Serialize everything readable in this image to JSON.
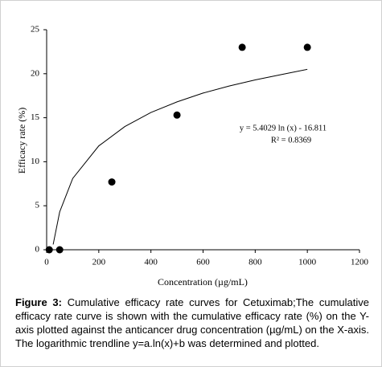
{
  "chart_data": {
    "type": "scatter",
    "x": [
      10,
      50,
      250,
      500,
      750,
      1000
    ],
    "values": [
      0,
      0,
      7.7,
      15.3,
      23,
      23
    ],
    "color": "#000000",
    "xlim": [
      0,
      1200
    ],
    "xticks": [
      0,
      200,
      400,
      600,
      800,
      1000,
      1200
    ],
    "ylim": [
      0,
      25
    ],
    "yticks": [
      0,
      5,
      10,
      15,
      20,
      25
    ],
    "xlabel": "Concentration (µg/mL)",
    "ylabel": "Efficacy rate (%)",
    "grid": false,
    "trendline": {
      "x": [
        25,
        50,
        100,
        200,
        300,
        400,
        500,
        600,
        700,
        800,
        900,
        1000
      ],
      "values": [
        0.6,
        4.3,
        8.1,
        11.8,
        14.0,
        15.6,
        16.8,
        17.8,
        18.6,
        19.3,
        19.9,
        20.5
      ]
    },
    "annotations": [
      "y = 5.4029 ln (x) - 16.811",
      "R² = 0.8369"
    ]
  },
  "caption": {
    "label": "Figure 3:",
    "text": "Cumulative efficacy rate curves for Cetuximab;The cumulative efficacy rate curve is shown with the cumulative efficacy rate (%) on the Y-axis plotted against the anticancer drug concentration (µg/mL) on the X-axis. The logarithmic trendline y=a.ln(x)+b was determined and plotted."
  }
}
